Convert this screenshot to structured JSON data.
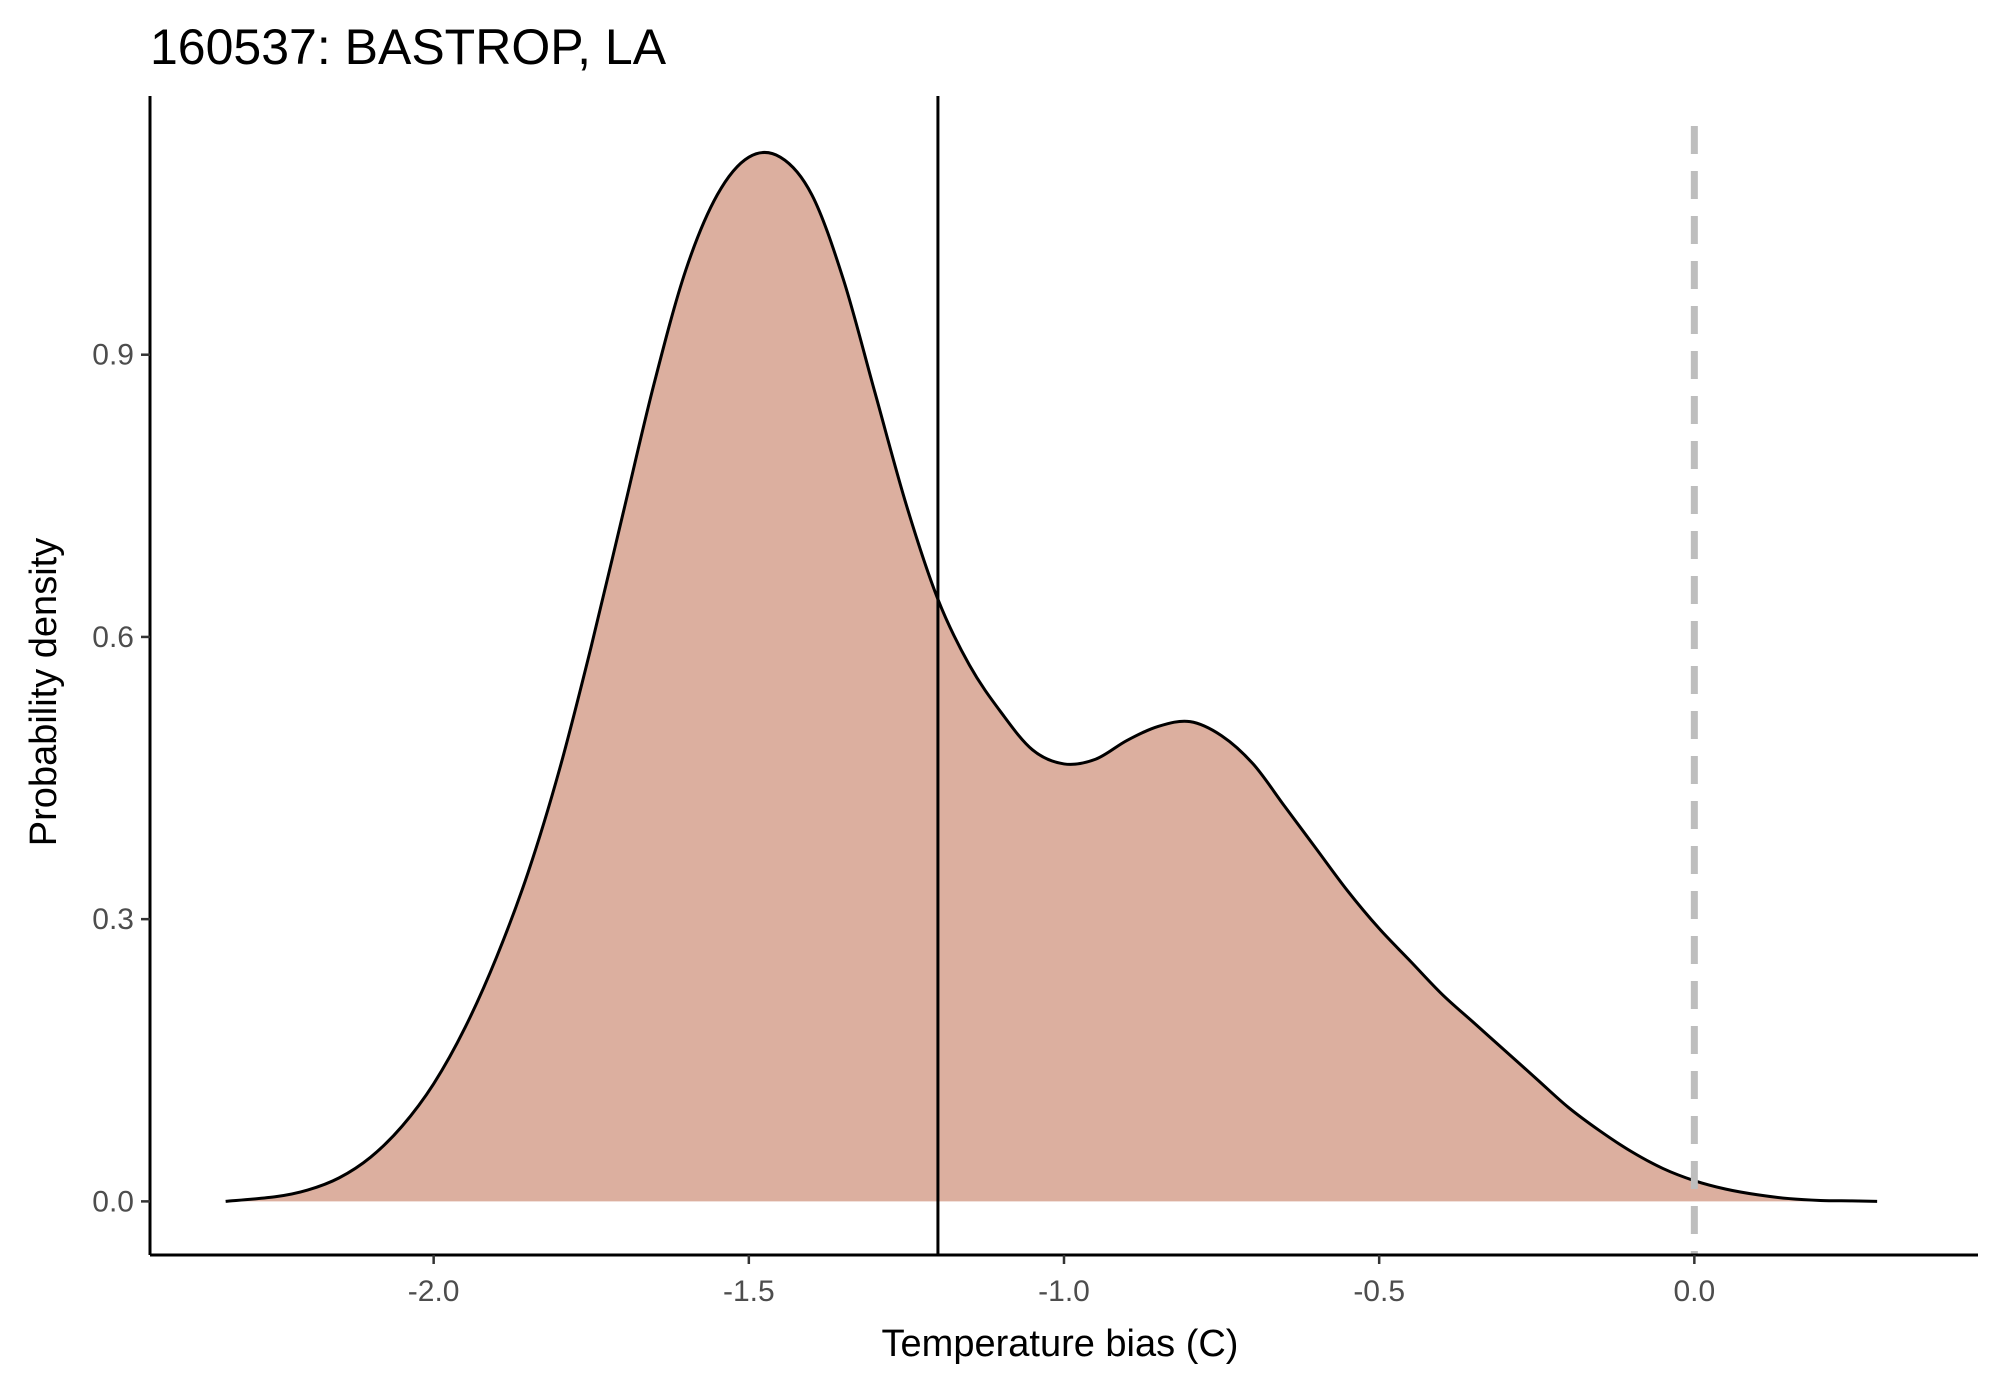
{
  "chart_data": {
    "type": "area",
    "title": "160537: BASTROP, LA",
    "xlabel": "Temperature bias (C)",
    "ylabel": "Probability density",
    "xlim": [
      -2.45,
      0.45
    ],
    "ylim": [
      -0.057,
      1.175
    ],
    "x_ticks": [
      -2.0,
      -1.5,
      -1.0,
      -0.5,
      0.0
    ],
    "x_tick_labels": [
      "-2.0",
      "-1.5",
      "-1.0",
      "-0.5",
      "0.0"
    ],
    "y_ticks": [
      0.0,
      0.3,
      0.6,
      0.9
    ],
    "y_tick_labels": [
      "0.0",
      "0.3",
      "0.6",
      "0.9"
    ],
    "grid": false,
    "legend": "none",
    "fill_color": "#dcaf9f",
    "line_color": "#000000",
    "series": [
      {
        "x": [
          -2.33,
          -2.25,
          -2.2,
          -2.15,
          -2.1,
          -2.05,
          -2.0,
          -1.95,
          -1.9,
          -1.85,
          -1.8,
          -1.75,
          -1.7,
          -1.65,
          -1.6,
          -1.55,
          -1.5,
          -1.45,
          -1.4,
          -1.35,
          -1.3,
          -1.25,
          -1.2,
          -1.15,
          -1.1,
          -1.05,
          -1.0,
          -0.95,
          -0.9,
          -0.85,
          -0.8,
          -0.75,
          -0.7,
          -0.65,
          -0.6,
          -0.55,
          -0.5,
          -0.45,
          -0.4,
          -0.35,
          -0.3,
          -0.25,
          -0.2,
          -0.15,
          -0.1,
          -0.05,
          0.0,
          0.05,
          0.1,
          0.15,
          0.2,
          0.25,
          0.29
        ],
        "y": [
          0.0,
          0.005,
          0.012,
          0.025,
          0.047,
          0.08,
          0.125,
          0.185,
          0.26,
          0.35,
          0.46,
          0.59,
          0.73,
          0.87,
          0.99,
          1.07,
          1.11,
          1.11,
          1.07,
          0.98,
          0.86,
          0.74,
          0.64,
          0.57,
          0.52,
          0.48,
          0.465,
          0.47,
          0.49,
          0.505,
          0.51,
          0.495,
          0.465,
          0.42,
          0.375,
          0.33,
          0.29,
          0.255,
          0.22,
          0.19,
          0.16,
          0.13,
          0.1,
          0.075,
          0.053,
          0.035,
          0.022,
          0.013,
          0.007,
          0.003,
          0.001,
          0.0005,
          0.0
        ]
      }
    ],
    "reference_lines": [
      {
        "axis": "x",
        "value": -1.2,
        "style": "solid",
        "color": "#000000"
      },
      {
        "axis": "x",
        "value": 0.0,
        "style": "dashed",
        "color": "#bebebe"
      }
    ]
  }
}
